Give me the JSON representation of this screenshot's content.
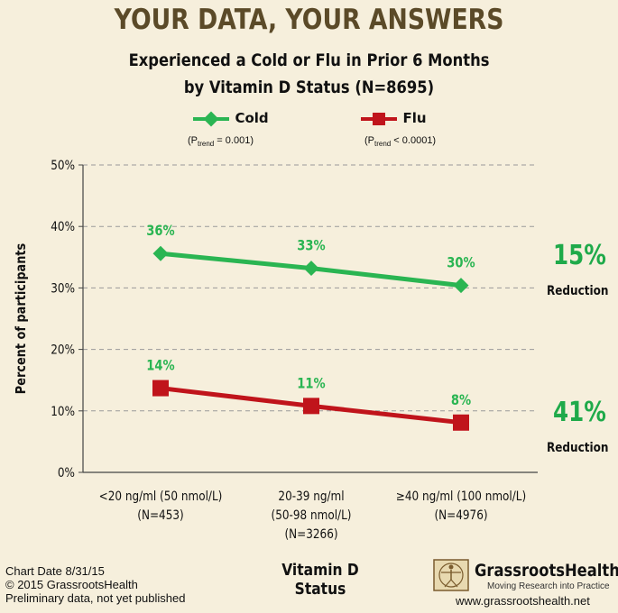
{
  "headline": "YOUR DATA, YOUR ANSWERS",
  "chart_data": {
    "type": "line",
    "title": "Experienced a Cold or Flu in Prior 6 Months",
    "subtitle": "by Vitamin D Status (N=8695)",
    "xlabel": "Vitamin D Status",
    "ylabel": "Percent of participants",
    "ylim": [
      0,
      50
    ],
    "yticks": [
      "0%",
      "10%",
      "20%",
      "30%",
      "40%",
      "50%"
    ],
    "grid": true,
    "legend_position": "top",
    "categories": [
      {
        "line1": "<20 ng/ml (50 nmol/L)",
        "line2": "(N=453)",
        "line3": ""
      },
      {
        "line1": "20-39 ng/ml",
        "line2": "(50-98 nmol/L)",
        "line3": "(N=3266)"
      },
      {
        "line1": "≥40 ng/ml (100 nmol/L)",
        "line2": "(N=4976)",
        "line3": ""
      }
    ],
    "series": [
      {
        "name": "Cold",
        "ptrend_label": "P",
        "ptrend_sub": "trend",
        "ptrend_value": " = 0.001)",
        "color": "#2ab552",
        "marker": "diamond",
        "values": [
          35.6,
          33.2,
          30.4
        ],
        "labels": [
          "36%",
          "33%",
          "30%"
        ],
        "reduction": "15%",
        "reduction_label": "Reduction"
      },
      {
        "name": "Flu",
        "ptrend_label": "P",
        "ptrend_sub": "trend",
        "ptrend_value": " < 0.0001)",
        "color": "#c0141b",
        "marker": "square",
        "values": [
          13.7,
          10.8,
          8.1
        ],
        "labels": [
          "14%",
          "11%",
          "8%"
        ],
        "reduction": "41%",
        "reduction_label": "Reduction"
      }
    ]
  },
  "footer": {
    "chart_date": "Chart Date 8/31/15",
    "copyright": "© 2015 GrassrootsHealth",
    "note": "Preliminary data, not yet published"
  },
  "brand": {
    "name": "GrassrootsHealth",
    "tagline": "Moving Research into Practice",
    "url": "www.grassrootshealth.net"
  }
}
